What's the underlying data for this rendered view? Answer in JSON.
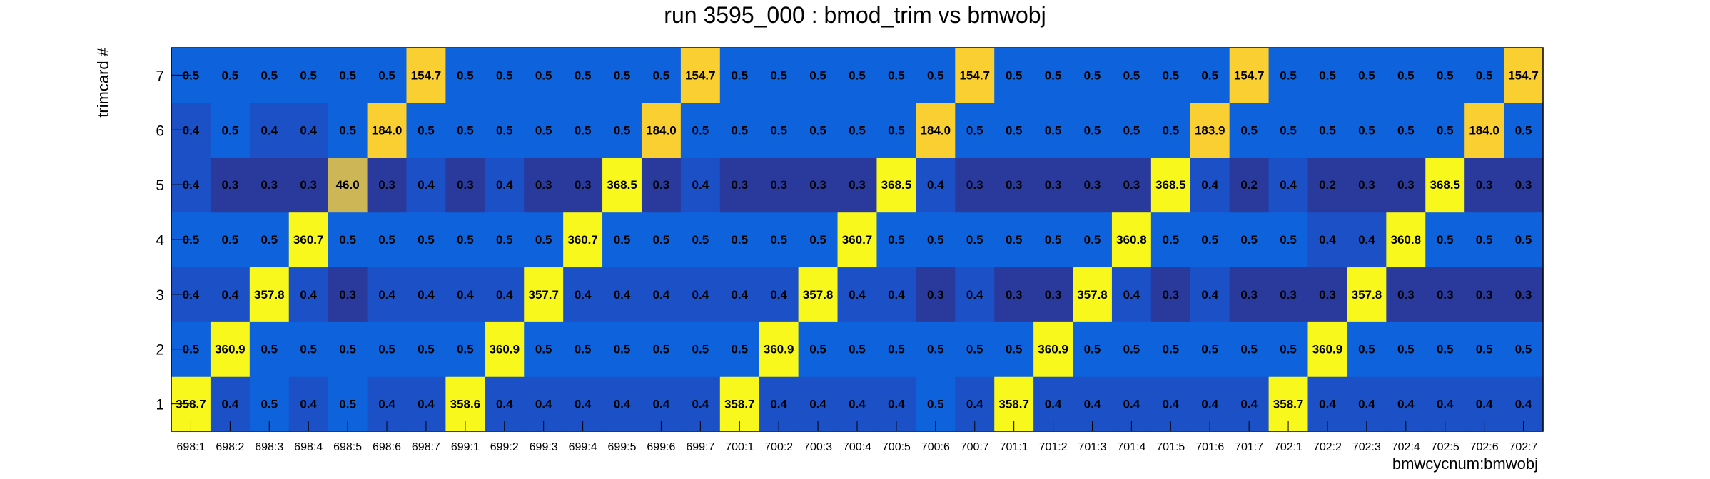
{
  "chart_data": {
    "type": "heatmap",
    "title": "run 3595_000 : bmod_trim vs bmwobj",
    "xlabel": "bmwcycnum:bmwobj",
    "ylabel": "trimcard #",
    "x_categories": [
      "698:1",
      "698:2",
      "698:3",
      "698:4",
      "698:5",
      "698:6",
      "698:7",
      "699:1",
      "699:2",
      "699:3",
      "699:4",
      "699:5",
      "699:6",
      "699:7",
      "700:1",
      "700:2",
      "700:3",
      "700:4",
      "700:5",
      "700:6",
      "700:7",
      "701:1",
      "701:2",
      "701:3",
      "701:4",
      "701:5",
      "701:6",
      "701:7",
      "702:1",
      "702:2",
      "702:3",
      "702:4",
      "702:5",
      "702:6",
      "702:7"
    ],
    "y_categories": [
      "1",
      "2",
      "3",
      "4",
      "5",
      "6",
      "7"
    ],
    "values": [
      [
        358.7,
        0.4,
        0.5,
        0.4,
        0.5,
        0.4,
        0.4,
        358.6,
        0.4,
        0.4,
        0.4,
        0.4,
        0.4,
        0.4,
        358.7,
        0.4,
        0.4,
        0.4,
        0.4,
        0.5,
        0.4,
        358.7,
        0.4,
        0.4,
        0.4,
        0.4,
        0.4,
        0.4,
        358.7,
        0.4,
        0.4,
        0.4,
        0.4,
        0.4,
        0.4
      ],
      [
        0.5,
        360.9,
        0.5,
        0.5,
        0.5,
        0.5,
        0.5,
        0.5,
        360.9,
        0.5,
        0.5,
        0.5,
        0.5,
        0.5,
        0.5,
        360.9,
        0.5,
        0.5,
        0.5,
        0.5,
        0.5,
        0.5,
        360.9,
        0.5,
        0.5,
        0.5,
        0.5,
        0.5,
        0.5,
        360.9,
        0.5,
        0.5,
        0.5,
        0.5,
        0.5
      ],
      [
        0.4,
        0.4,
        357.8,
        0.4,
        0.3,
        0.4,
        0.4,
        0.4,
        0.4,
        357.7,
        0.4,
        0.4,
        0.4,
        0.4,
        0.4,
        0.4,
        357.8,
        0.4,
        0.4,
        0.3,
        0.4,
        0.3,
        0.3,
        357.8,
        0.4,
        0.3,
        0.4,
        0.3,
        0.3,
        0.3,
        357.8,
        0.3,
        0.3,
        0.3,
        0.3
      ],
      [
        0.5,
        0.5,
        0.5,
        360.7,
        0.5,
        0.5,
        0.5,
        0.5,
        0.5,
        0.5,
        360.7,
        0.5,
        0.5,
        0.5,
        0.5,
        0.5,
        0.5,
        360.7,
        0.5,
        0.5,
        0.5,
        0.5,
        0.5,
        0.5,
        360.8,
        0.5,
        0.5,
        0.5,
        0.5,
        0.4,
        0.4,
        360.8,
        0.5,
        0.5,
        0.5
      ],
      [
        0.4,
        0.3,
        0.3,
        0.3,
        46.0,
        0.3,
        0.4,
        0.3,
        0.4,
        0.3,
        0.3,
        368.5,
        0.3,
        0.4,
        0.3,
        0.3,
        0.3,
        0.3,
        368.5,
        0.4,
        0.3,
        0.3,
        0.3,
        0.3,
        0.3,
        368.5,
        0.4,
        0.2,
        0.4,
        0.2,
        0.3,
        0.3,
        368.5,
        0.3,
        0.3
      ],
      [
        0.4,
        0.5,
        0.4,
        0.4,
        0.5,
        184.0,
        0.5,
        0.5,
        0.5,
        0.5,
        0.5,
        0.5,
        184.0,
        0.5,
        0.5,
        0.5,
        0.5,
        0.5,
        0.5,
        184.0,
        0.5,
        0.5,
        0.5,
        0.5,
        0.5,
        0.5,
        183.9,
        0.5,
        0.5,
        0.5,
        0.5,
        0.5,
        0.5,
        184.0,
        0.5
      ],
      [
        0.5,
        0.5,
        0.5,
        0.5,
        0.5,
        0.5,
        154.7,
        0.5,
        0.5,
        0.5,
        0.5,
        0.5,
        0.5,
        154.7,
        0.5,
        0.5,
        0.5,
        0.5,
        0.5,
        0.5,
        154.7,
        0.5,
        0.5,
        0.5,
        0.5,
        0.5,
        0.5,
        154.7,
        0.5,
        0.5,
        0.5,
        0.5,
        0.5,
        0.5,
        154.7
      ]
    ],
    "colors": {
      "very_low": "#2a3a9c",
      "low": "#1c50c6",
      "mid": "#0e62dc",
      "olive": "#cdb655",
      "orange": "#f9cf32",
      "yellow": "#f8f81c"
    },
    "legend": "none",
    "grid": false
  }
}
